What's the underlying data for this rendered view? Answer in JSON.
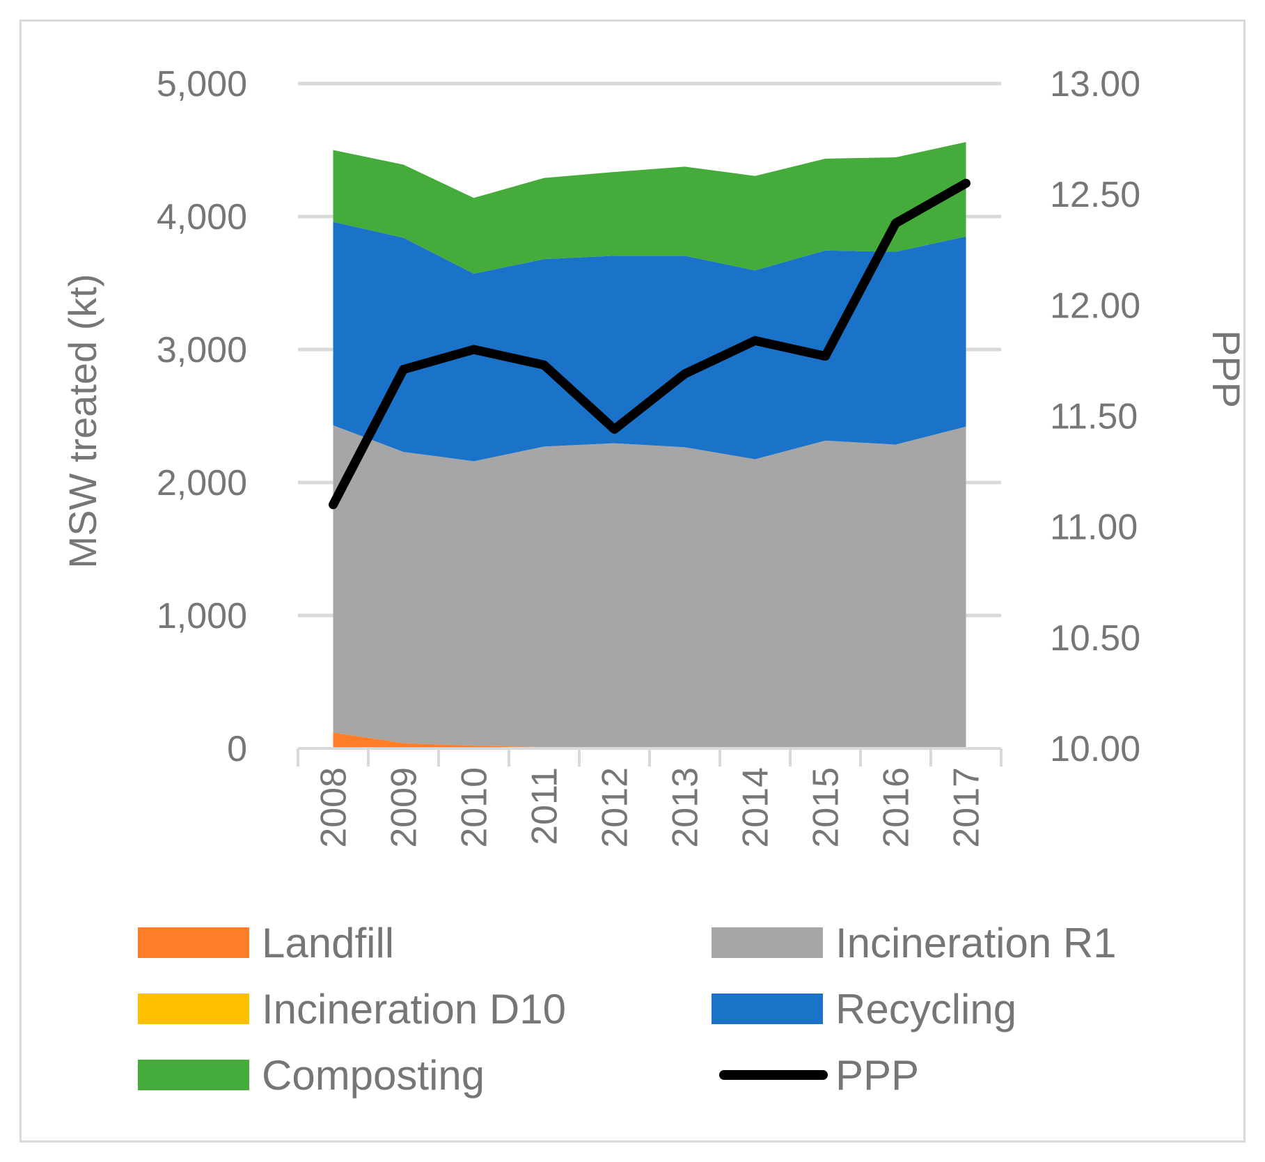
{
  "chart_data": {
    "type": "area",
    "title": "",
    "x": [
      "2008",
      "2009",
      "2010",
      "2011",
      "2012",
      "2013",
      "2014",
      "2015",
      "2016",
      "2017"
    ],
    "ylabel": "MSW treated (kt)",
    "y2label": "PPP",
    "ylim": [
      0,
      5000
    ],
    "y2lim": [
      10.0,
      13.0
    ],
    "yticks": [
      "0",
      "1,000",
      "2,000",
      "3,000",
      "4,000",
      "5,000"
    ],
    "y2ticks": [
      "10.00",
      "10.50",
      "11.00",
      "11.50",
      "12.00",
      "12.50",
      "13.00"
    ],
    "grid": true,
    "stacked": true,
    "series": [
      {
        "name": "Landfill",
        "color": "#fd7e26",
        "values": [
          120,
          40,
          20,
          10,
          5,
          5,
          5,
          10,
          5,
          5
        ]
      },
      {
        "name": "Incineration D10",
        "color": "#fdbf00",
        "values": [
          0,
          0,
          0,
          0,
          0,
          0,
          0,
          0,
          0,
          0
        ]
      },
      {
        "name": "Incineration R1",
        "color": "#a6a6a6",
        "values": [
          2310,
          2190,
          2140,
          2260,
          2290,
          2260,
          2170,
          2305,
          2280,
          2415
        ]
      },
      {
        "name": "Recycling",
        "color": "#1a73c8",
        "values": [
          1530,
          1610,
          1410,
          1410,
          1410,
          1440,
          1420,
          1430,
          1450,
          1430
        ]
      },
      {
        "name": "Composting",
        "color": "#45ab3a",
        "values": [
          540,
          550,
          570,
          610,
          630,
          670,
          710,
          690,
          710,
          710
        ]
      },
      {
        "name": "PPP",
        "color": "#000000",
        "axis": "right",
        "type": "line",
        "values": [
          11.1,
          11.71,
          11.8,
          11.73,
          11.44,
          11.69,
          11.84,
          11.77,
          12.37,
          12.55
        ]
      }
    ],
    "legend": {
      "position": "bottom",
      "items": [
        {
          "label": "Landfill",
          "color": "#fd7e26",
          "kind": "box"
        },
        {
          "label": "Incineration R1",
          "color": "#a6a6a6",
          "kind": "box"
        },
        {
          "label": "Incineration D10",
          "color": "#fdbf00",
          "kind": "box"
        },
        {
          "label": "Recycling",
          "color": "#1a73c8",
          "kind": "box"
        },
        {
          "label": "Composting",
          "color": "#45ab3a",
          "kind": "box"
        },
        {
          "label": "PPP",
          "color": "#000000",
          "kind": "line"
        }
      ]
    }
  }
}
